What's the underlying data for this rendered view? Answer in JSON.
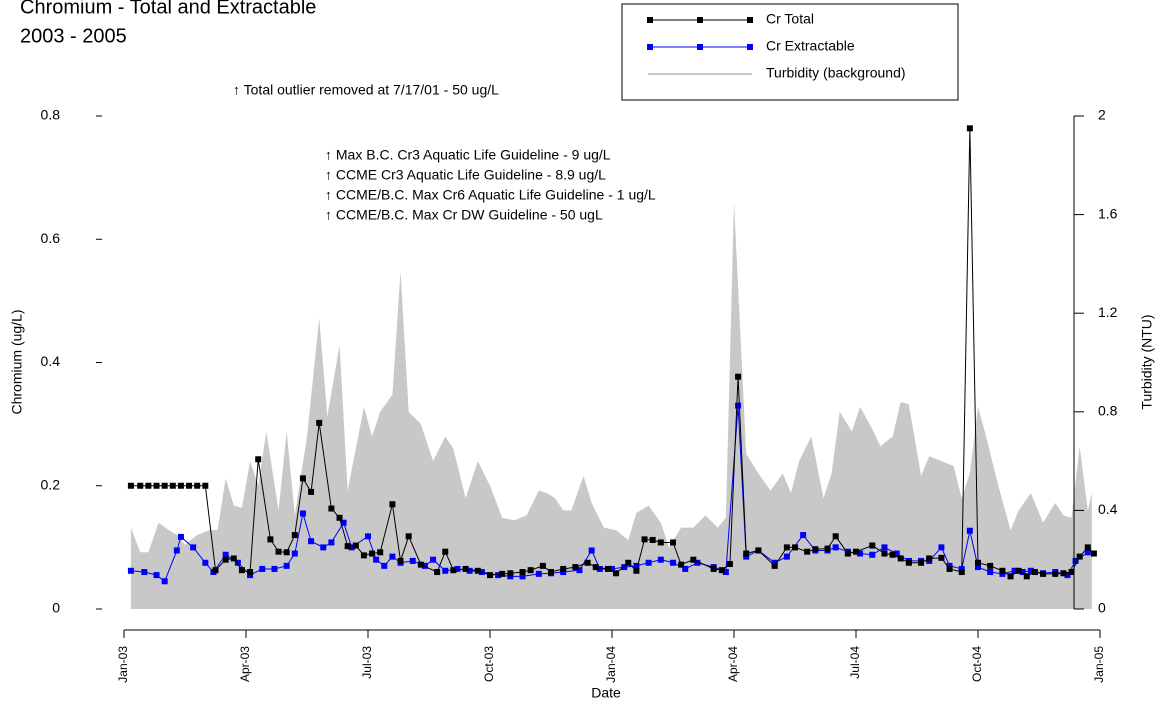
{
  "chart_data": {
    "type": "line",
    "title": "Chromium - Total and Extractable",
    "subtitle": "2003 - 2005",
    "x_label": "Date",
    "y_label": "Chromium (ug/L)",
    "y2_label": "Turbidity (NTU)",
    "annotations": [
      "↑ Total outlier removed at 7/17/01 - 50 ug/L",
      "↑ Max B.C. Cr3 Aquatic Life Guideline - 9 ug/L",
      "↑ CCME Cr3 Aquatic Life Guideline - 8.9 ug/L",
      "↑ CCME/B.C. Max Cr6 Aquatic Life Guideline - 1 ug/L",
      "↑ CCME/B.C. Max Cr DW Guideline - 50 ugL"
    ],
    "xlim": [
      0,
      24
    ],
    "xticks": [
      {
        "value": 0,
        "label": "Jan-03"
      },
      {
        "value": 3,
        "label": "Apr-03"
      },
      {
        "value": 6,
        "label": "Jul-03"
      },
      {
        "value": 9,
        "label": "Oct-03"
      },
      {
        "value": 12,
        "label": "Jan-04"
      },
      {
        "value": 15,
        "label": "Apr-04"
      },
      {
        "value": 18,
        "label": "Jul-04"
      },
      {
        "value": 21,
        "label": "Oct-04"
      },
      {
        "value": 24,
        "label": "Jan-05"
      }
    ],
    "ylim": [
      0,
      0.8
    ],
    "yticks": [
      0,
      0.2,
      0.4,
      0.6,
      0.8
    ],
    "y2lim": [
      0,
      2
    ],
    "y2ticks": [
      0,
      0.4,
      0.8,
      1.2,
      1.6,
      2
    ],
    "series": [
      {
        "name": "Turbidity (background)",
        "color": "#c8c8c8",
        "axis": "y2",
        "style": "area",
        "x": [
          0.17,
          0.4,
          0.6,
          0.85,
          1.1,
          1.3,
          1.5,
          1.8,
          2.1,
          2.3,
          2.5,
          2.7,
          2.9,
          3.1,
          3.3,
          3.5,
          3.8,
          4.0,
          4.2,
          4.5,
          4.8,
          5.0,
          5.3,
          5.5,
          5.7,
          5.9,
          6.1,
          6.3,
          6.6,
          6.8,
          7.0,
          7.3,
          7.6,
          7.9,
          8.1,
          8.4,
          8.7,
          9.0,
          9.3,
          9.6,
          9.9,
          10.2,
          10.4,
          10.6,
          10.8,
          11.0,
          11.3,
          11.5,
          11.8,
          12.1,
          12.4,
          12.6,
          12.9,
          13.2,
          13.4,
          13.7,
          14.0,
          14.3,
          14.6,
          14.8,
          15.0,
          15.3,
          15.6,
          15.9,
          16.2,
          16.4,
          16.6,
          16.9,
          17.2,
          17.4,
          17.6,
          17.9,
          18.1,
          18.4,
          18.6,
          18.9,
          19.1,
          19.3,
          19.6,
          19.8,
          20.1,
          20.4,
          20.6,
          20.8,
          21.0,
          21.2,
          21.5,
          21.8,
          22.0,
          22.3,
          22.6,
          22.9,
          23.1,
          23.3,
          23.5,
          23.7,
          23.8
        ],
        "values": [
          0.33,
          0.23,
          0.23,
          0.35,
          0.32,
          0.3,
          0.26,
          0.3,
          0.32,
          0.32,
          0.53,
          0.42,
          0.41,
          0.6,
          0.5,
          0.72,
          0.4,
          0.72,
          0.38,
          0.7,
          1.18,
          0.78,
          1.07,
          0.48,
          0.65,
          0.82,
          0.7,
          0.8,
          0.87,
          1.37,
          0.8,
          0.75,
          0.6,
          0.7,
          0.65,
          0.45,
          0.6,
          0.5,
          0.37,
          0.36,
          0.38,
          0.48,
          0.47,
          0.45,
          0.4,
          0.4,
          0.54,
          0.43,
          0.33,
          0.32,
          0.28,
          0.39,
          0.42,
          0.35,
          0.25,
          0.33,
          0.33,
          0.38,
          0.33,
          0.37,
          1.65,
          0.63,
          0.55,
          0.48,
          0.55,
          0.47,
          0.6,
          0.7,
          0.45,
          0.55,
          0.8,
          0.72,
          0.82,
          0.73,
          0.66,
          0.7,
          0.84,
          0.83,
          0.54,
          0.62,
          0.6,
          0.58,
          0.45,
          0.55,
          0.82,
          0.7,
          0.5,
          0.32,
          0.4,
          0.47,
          0.35,
          0.43,
          0.38,
          0.37,
          0.66,
          0.4,
          0.47
        ]
      },
      {
        "name": "Cr Extractable",
        "color": "#0000ff",
        "style": "line",
        "x": [
          0.17,
          0.5,
          0.8,
          1.0,
          1.3,
          1.4,
          1.7,
          2.0,
          2.2,
          2.5,
          2.8,
          3.1,
          3.4,
          3.7,
          4.0,
          4.2,
          4.4,
          4.6,
          4.9,
          5.1,
          5.4,
          5.6,
          6.0,
          6.2,
          6.4,
          6.6,
          6.8,
          7.1,
          7.4,
          7.6,
          7.9,
          8.2,
          8.5,
          8.8,
          9.2,
          9.5,
          9.8,
          10.2,
          10.5,
          10.8,
          11.2,
          11.5,
          11.7,
          12.0,
          12.3,
          12.6,
          12.9,
          13.2,
          13.5,
          13.8,
          14.1,
          14.5,
          14.8,
          15.1,
          15.3,
          15.6,
          16.0,
          16.3,
          16.7,
          17.0,
          17.3,
          17.5,
          17.8,
          18.1,
          18.4,
          18.7,
          19.0,
          19.3,
          19.6,
          19.8,
          20.1,
          20.3,
          20.6,
          20.8,
          21.0,
          21.3,
          21.6,
          21.9,
          22.1,
          22.3,
          22.6,
          22.9,
          23.2,
          23.4,
          23.7
        ],
        "values": [
          0.062,
          0.06,
          0.055,
          0.045,
          0.095,
          0.117,
          0.1,
          0.075,
          0.06,
          0.088,
          0.075,
          0.055,
          0.065,
          0.065,
          0.07,
          0.09,
          0.155,
          0.11,
          0.1,
          0.108,
          0.14,
          0.1,
          0.118,
          0.08,
          0.07,
          0.085,
          0.075,
          0.078,
          0.07,
          0.08,
          0.062,
          0.065,
          0.062,
          0.06,
          0.055,
          0.053,
          0.053,
          0.057,
          0.058,
          0.06,
          0.063,
          0.095,
          0.065,
          0.065,
          0.068,
          0.07,
          0.075,
          0.08,
          0.075,
          0.065,
          0.075,
          0.068,
          0.06,
          0.33,
          0.085,
          0.095,
          0.075,
          0.085,
          0.12,
          0.095,
          0.095,
          0.1,
          0.093,
          0.09,
          0.088,
          0.1,
          0.09,
          0.078,
          0.078,
          0.078,
          0.1,
          0.07,
          0.065,
          0.127,
          0.068,
          0.06,
          0.057,
          0.062,
          0.06,
          0.062,
          0.058,
          0.06,
          0.055,
          0.078,
          0.092
        ]
      },
      {
        "name": "Cr Total",
        "color": "#000000",
        "style": "line",
        "x": [
          0.17,
          0.4,
          0.6,
          0.8,
          1.0,
          1.2,
          1.4,
          1.6,
          1.8,
          2.0,
          2.25,
          2.5,
          2.7,
          2.9,
          3.1,
          3.3,
          3.6,
          3.8,
          4.0,
          4.2,
          4.4,
          4.6,
          4.8,
          5.1,
          5.3,
          5.5,
          5.7,
          5.9,
          6.1,
          6.3,
          6.6,
          6.8,
          7.0,
          7.3,
          7.7,
          7.9,
          8.1,
          8.4,
          8.7,
          9.0,
          9.3,
          9.5,
          9.8,
          10.0,
          10.3,
          10.5,
          10.8,
          11.1,
          11.4,
          11.6,
          11.9,
          12.1,
          12.4,
          12.6,
          12.8,
          13.0,
          13.2,
          13.5,
          13.7,
          14.0,
          14.5,
          14.7,
          14.9,
          15.1,
          15.3,
          15.6,
          16.0,
          16.3,
          16.5,
          16.8,
          17.0,
          17.3,
          17.5,
          17.8,
          18.0,
          18.4,
          18.7,
          18.9,
          19.1,
          19.3,
          19.6,
          19.8,
          20.1,
          20.3,
          20.6,
          20.8,
          21.0,
          21.3,
          21.6,
          21.8,
          22.0,
          22.2,
          22.4,
          22.6,
          22.9,
          23.1,
          23.3,
          23.5,
          23.7,
          23.85
        ],
        "values": [
          0.2,
          0.2,
          0.2,
          0.2,
          0.2,
          0.2,
          0.2,
          0.2,
          0.2,
          0.2,
          0.063,
          0.08,
          0.082,
          0.063,
          0.06,
          0.243,
          0.113,
          0.093,
          0.092,
          0.12,
          0.212,
          0.19,
          0.302,
          0.163,
          0.148,
          0.102,
          0.103,
          0.087,
          0.09,
          0.092,
          0.17,
          0.078,
          0.118,
          0.072,
          0.06,
          0.093,
          0.063,
          0.065,
          0.062,
          0.055,
          0.057,
          0.058,
          0.06,
          0.063,
          0.07,
          0.06,
          0.065,
          0.068,
          0.075,
          0.068,
          0.065,
          0.058,
          0.075,
          0.062,
          0.113,
          0.112,
          0.108,
          0.108,
          0.072,
          0.08,
          0.065,
          0.063,
          0.073,
          0.377,
          0.09,
          0.095,
          0.07,
          0.1,
          0.1,
          0.093,
          0.097,
          0.098,
          0.118,
          0.09,
          0.093,
          0.103,
          0.09,
          0.088,
          0.082,
          0.075,
          0.075,
          0.082,
          0.083,
          0.065,
          0.06,
          0.78,
          0.075,
          0.07,
          0.062,
          0.053,
          0.062,
          0.053,
          0.06,
          0.057,
          0.057,
          0.058,
          0.06,
          0.085,
          0.1,
          0.09
        ]
      }
    ],
    "legend_order": [
      "Cr Total",
      "Cr Extractable",
      "Turbidity (background)"
    ]
  }
}
